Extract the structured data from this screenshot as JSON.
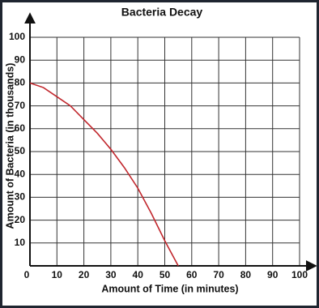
{
  "chart_data": {
    "type": "line",
    "title": "Bacteria Decay",
    "x_label": "Amount of Time (in minutes)",
    "y_label": "Amount of Bacteria (in thousands)",
    "x": [
      0,
      5,
      10,
      15,
      20,
      25,
      30,
      35,
      40,
      45,
      50,
      55
    ],
    "series": [
      {
        "color": "#c1272d",
        "values": [
          80,
          78,
          74,
          70,
          64,
          58,
          51,
          43,
          34,
          23,
          11,
          0
        ]
      }
    ],
    "xlim": [
      0,
      100
    ],
    "xticks": [
      0,
      10,
      20,
      30,
      40,
      50,
      60,
      70,
      80,
      90,
      100
    ],
    "ylim": [
      0,
      100
    ],
    "yticks": [
      10,
      20,
      30,
      40,
      50,
      60,
      70,
      80,
      90,
      100
    ],
    "grid": true
  }
}
